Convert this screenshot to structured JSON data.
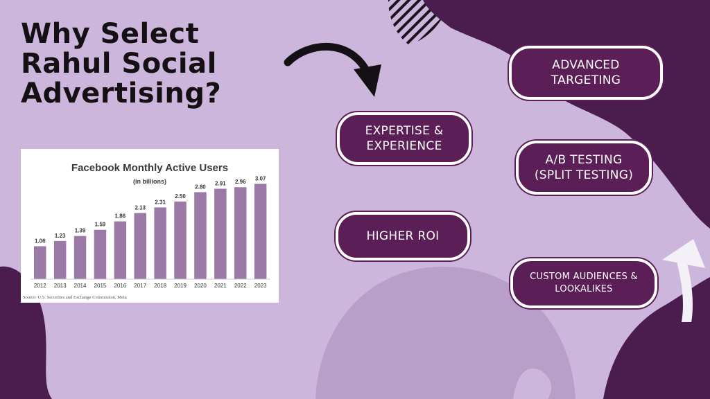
{
  "headline": {
    "line1": "Why Select",
    "line2": "Rahul Social",
    "line3": "Advertising?"
  },
  "badges": [
    {
      "text": "EXPERTISE & EXPERIENCE"
    },
    {
      "text": "ADVANCED TARGETING"
    },
    {
      "text": "A/B TESTING (SPLIT TESTING)"
    },
    {
      "text": "HIGHER ROI"
    },
    {
      "text": "CUSTOM AUDIENCES & LOOKALIKES"
    }
  ],
  "colors": {
    "background": "#cdb6dc",
    "dark_purple": "#4a1d4e",
    "badge_fill": "#5b1e56",
    "bar": "#9b7aa8",
    "headline_text": "#141014"
  },
  "icons": [
    "curved-arrow-icon",
    "up-arrow-icon"
  ],
  "chart_data": {
    "type": "bar",
    "title": "Facebook Monthly Active Users",
    "subtitle": "(in billions)",
    "categories": [
      "2012",
      "2013",
      "2014",
      "2015",
      "2016",
      "2017",
      "2018",
      "2019",
      "2020",
      "2021",
      "2022",
      "2023"
    ],
    "values": [
      1.06,
      1.23,
      1.39,
      1.59,
      1.86,
      2.13,
      2.31,
      2.5,
      2.8,
      2.91,
      2.96,
      3.07
    ],
    "value_labels": [
      "1.06",
      "1.23",
      "1.39",
      "1.59",
      "1.86",
      "2.13",
      "2.31",
      "2.50",
      "2.80",
      "2.91",
      "2.96",
      "3.07"
    ],
    "ylim": [
      0,
      3.3
    ],
    "grid": false,
    "source": "Source: U.S. Securities and Exchange Commission, Meta"
  }
}
